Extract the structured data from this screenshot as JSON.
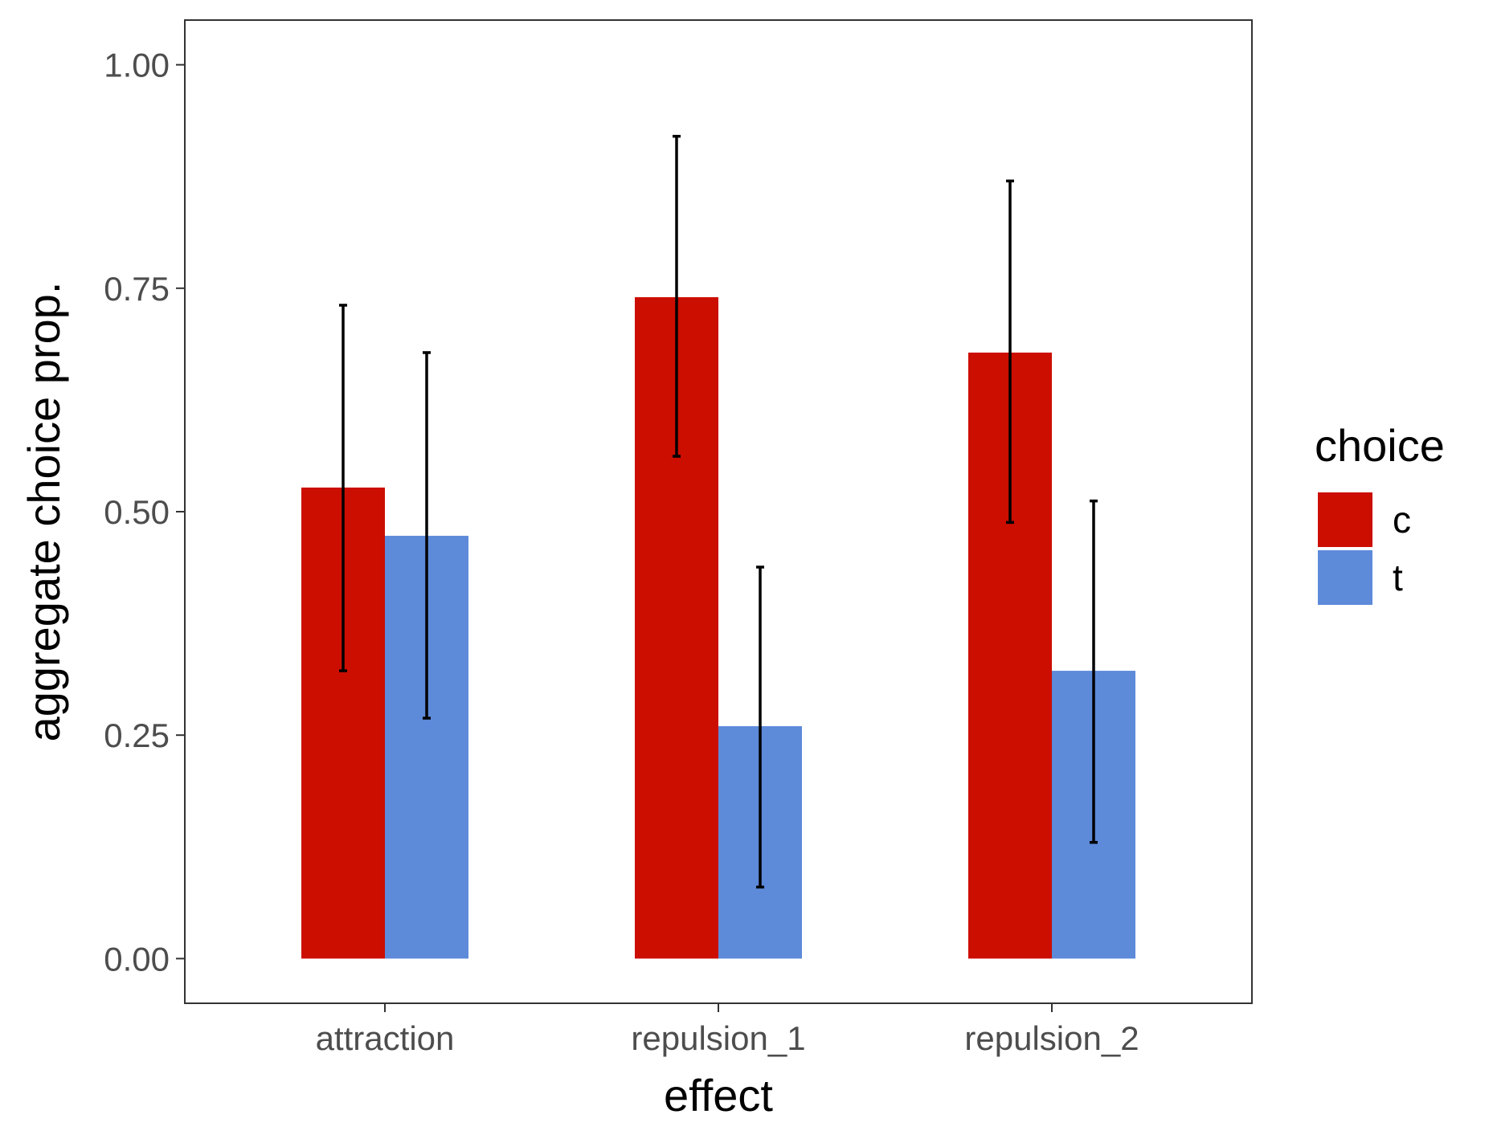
{
  "chart_data": {
    "type": "bar",
    "xlabel": "effect",
    "ylabel": "aggregate choice prop.",
    "categories": [
      "attraction",
      "repulsion_1",
      "repulsion_2"
    ],
    "ylim": [
      -0.05,
      1.05
    ],
    "yticks": [
      0.0,
      0.25,
      0.5,
      0.75,
      1.0
    ],
    "ytick_labels": [
      "0.00",
      "0.25",
      "0.50",
      "0.75",
      "1.00"
    ],
    "grid": false,
    "legend": {
      "title": "choice",
      "position": "right"
    },
    "series": [
      {
        "name": "c",
        "color": "#cc0e00",
        "values": [
          0.527,
          0.74,
          0.678
        ],
        "error_low": [
          0.322,
          0.562,
          0.488
        ],
        "error_high": [
          0.731,
          0.92,
          0.87
        ]
      },
      {
        "name": "t",
        "color": "#5d8ad9",
        "values": [
          0.473,
          0.26,
          0.322
        ],
        "error_low": [
          0.269,
          0.08,
          0.13
        ],
        "error_high": [
          0.678,
          0.438,
          0.512
        ]
      }
    ]
  }
}
